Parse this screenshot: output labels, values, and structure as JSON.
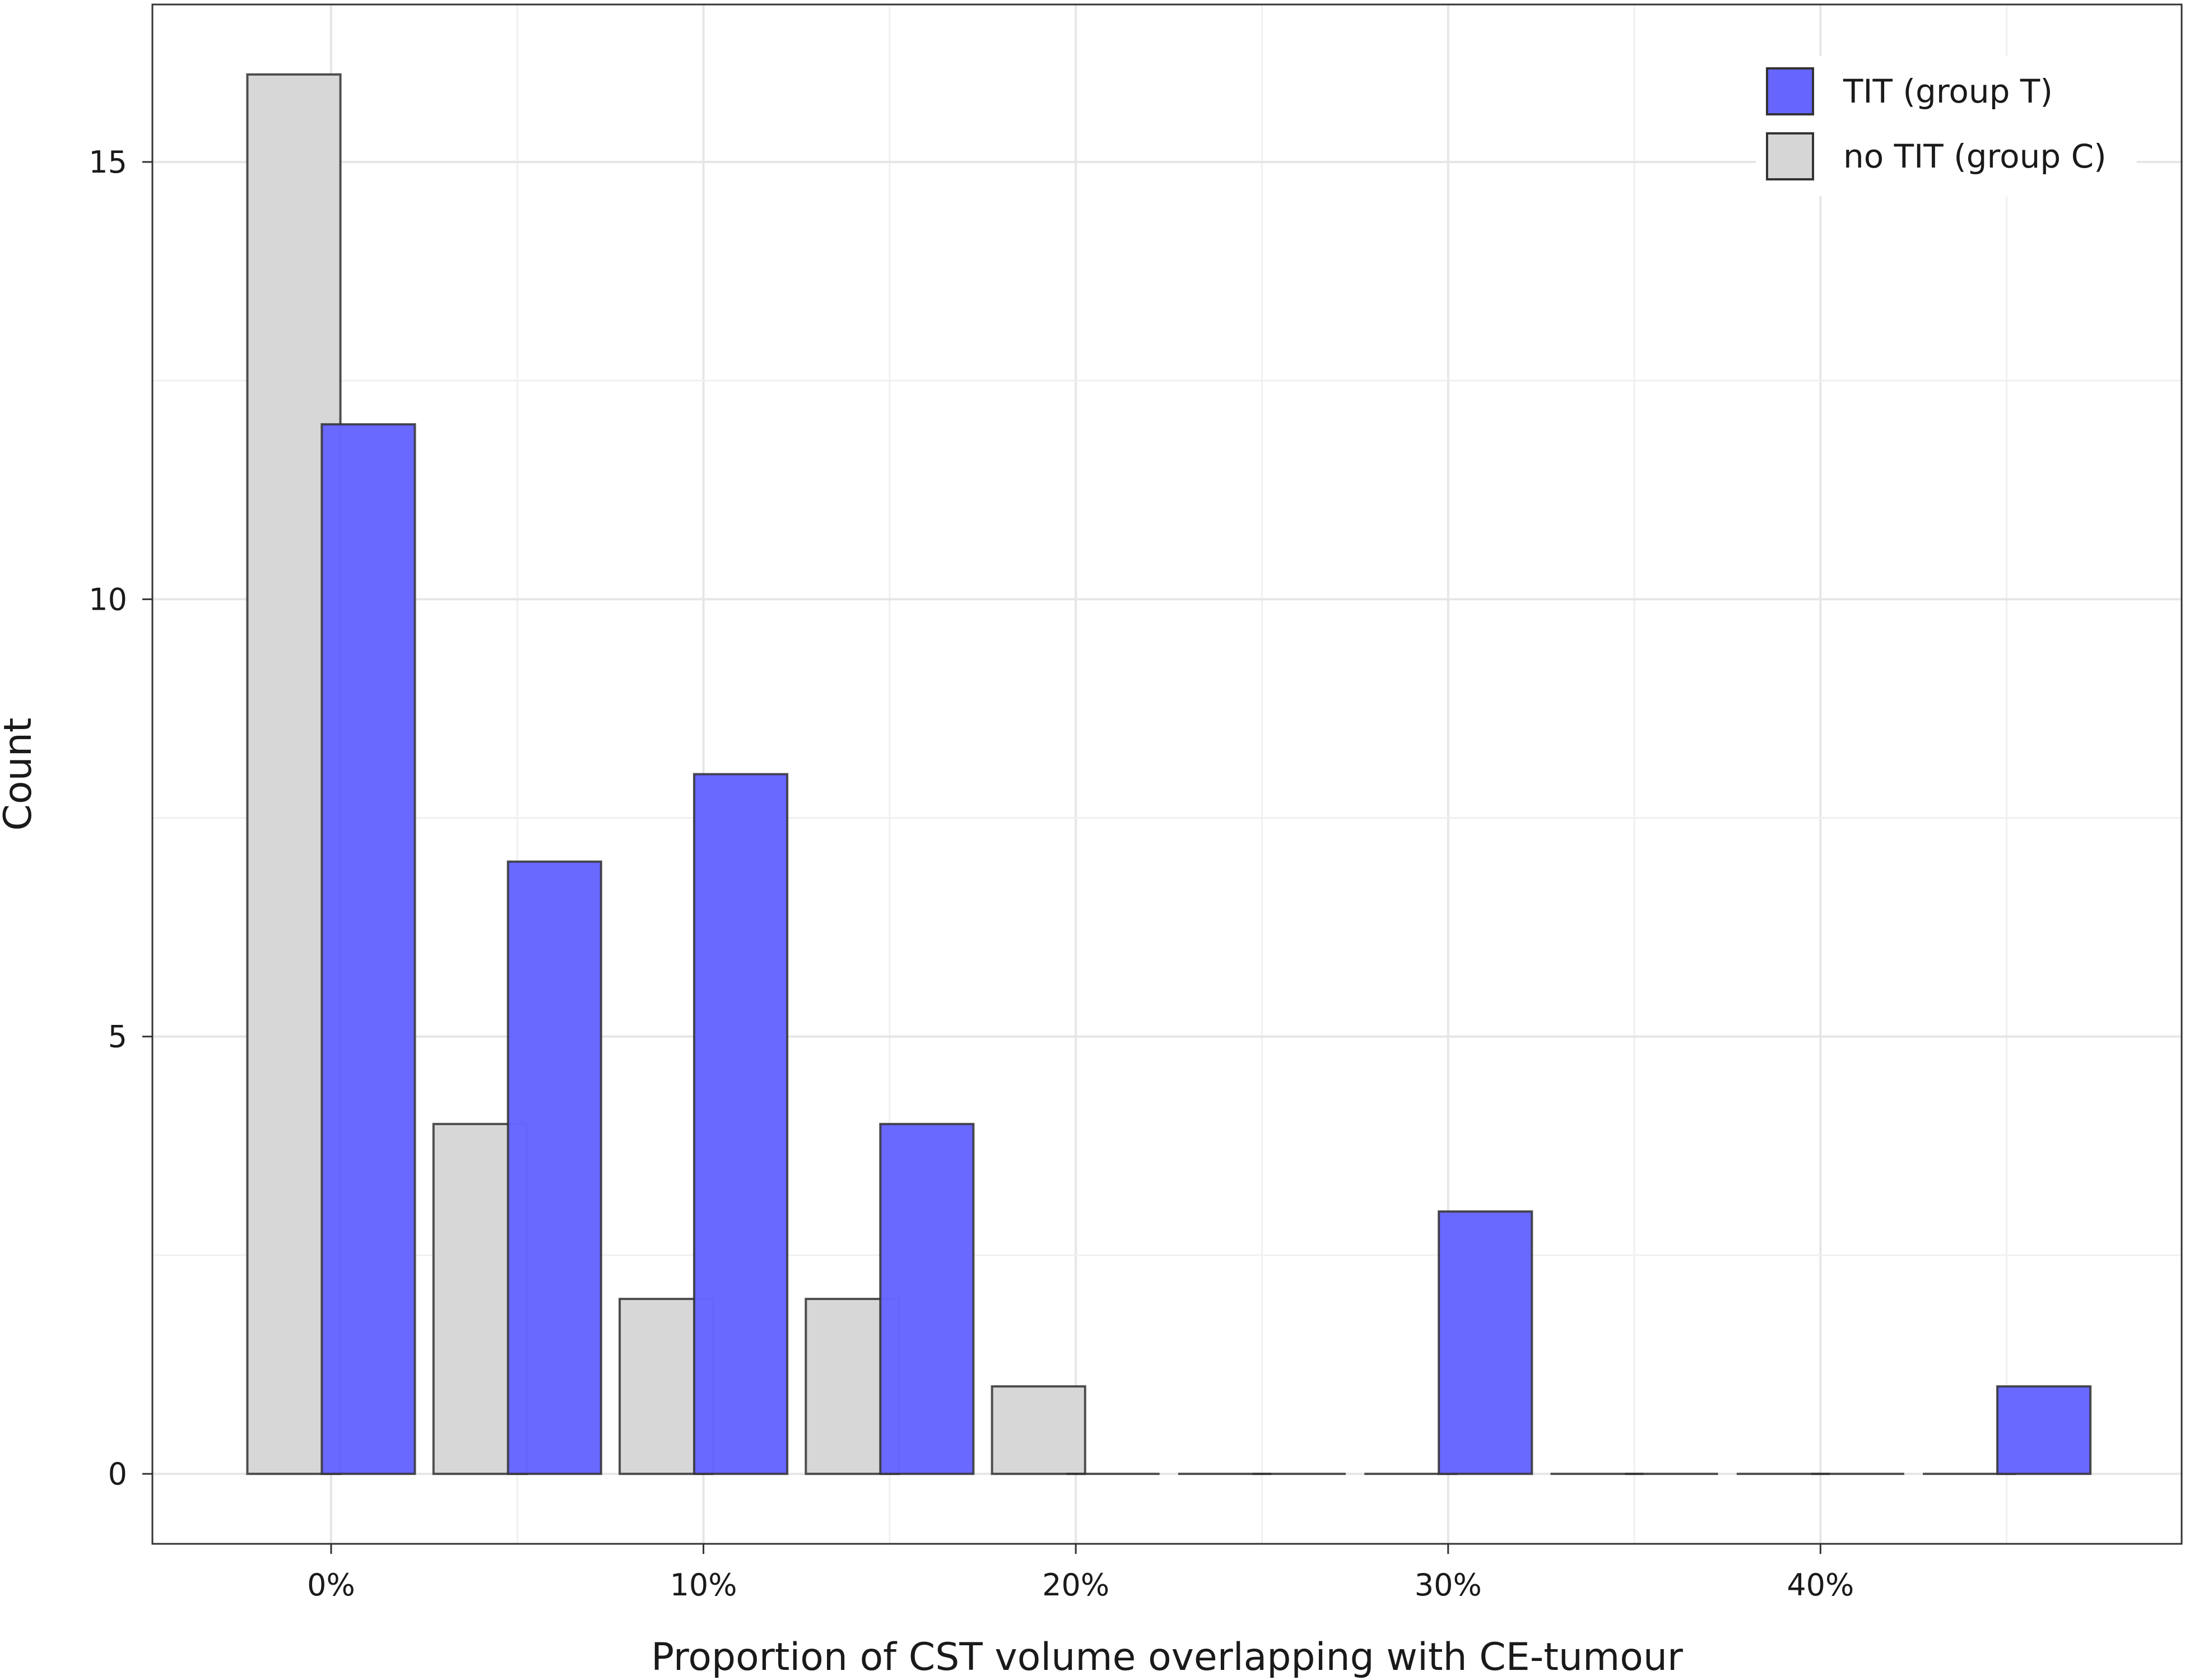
{
  "chart_data": {
    "type": "bar",
    "xlabel": "Proportion of CST volume overlapping with CE-tumour",
    "ylabel": "Count",
    "x_ticks": [
      {
        "value": 0,
        "label": "0%"
      },
      {
        "value": 10,
        "label": "10%"
      },
      {
        "value": 20,
        "label": "20%"
      },
      {
        "value": 30,
        "label": "30%"
      },
      {
        "value": 40,
        "label": "40%"
      }
    ],
    "y_ticks": [
      0,
      5,
      10,
      15
    ],
    "xlim": [
      -4.8,
      49.7
    ],
    "ylim": [
      -0.8,
      16.8
    ],
    "grid": true,
    "legend_position": "top-right",
    "bins": [
      0,
      5,
      10,
      15,
      20,
      25,
      30,
      35,
      40,
      45
    ],
    "series": [
      {
        "name": "TIT (group T)",
        "color": "#6666ff",
        "offset": 1.0,
        "values": [
          12,
          7,
          8,
          4,
          0,
          0,
          3,
          0,
          0,
          1
        ]
      },
      {
        "name": "no TIT (group C)",
        "color": "#d6d6d6",
        "offset": -1.0,
        "values": [
          16,
          4,
          2,
          2,
          1,
          0,
          0,
          0,
          0,
          0
        ]
      }
    ],
    "bar_width": 2.5
  }
}
